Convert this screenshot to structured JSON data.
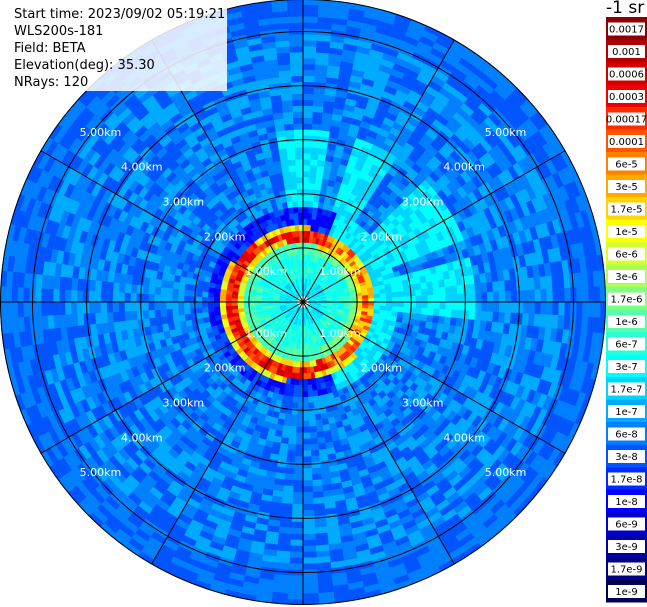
{
  "info": {
    "start_time": "Start time: 2023/09/02 05:19:21",
    "instrument": "WLS200s-181",
    "field": "Field: BETA",
    "elevation": "Elevation(deg): 35.30",
    "nrays": "NRays: 120"
  },
  "colorbar": {
    "unit": "-1 sr",
    "labels": [
      "0.0017",
      "0.001",
      "0.0006",
      "0.0003",
      "0.00017",
      "0.0001",
      "6e-5",
      "3e-5",
      "1.7e-5",
      "1e-5",
      "6e-6",
      "3e-6",
      "1.7e-6",
      "1e-6",
      "6e-7",
      "3e-7",
      "1.7e-7",
      "1e-7",
      "6e-8",
      "3e-8",
      "1.7e-8",
      "1e-8",
      "6e-9",
      "3e-9",
      "1.7e-9",
      "1e-9"
    ],
    "colors": [
      "#8b0000",
      "#b00000",
      "#d40000",
      "#ee0000",
      "#ff2a00",
      "#ff5500",
      "#ff8000",
      "#ffaa00",
      "#ffd400",
      "#ffff00",
      "#d4ff2a",
      "#aaff55",
      "#80ff80",
      "#55ffaa",
      "#2affd4",
      "#00ffff",
      "#00d4ff",
      "#00aaff",
      "#0080ff",
      "#0055ff",
      "#002aff",
      "#0000ff",
      "#0000d4",
      "#0000aa",
      "#000080",
      "#000055"
    ]
  },
  "chart_data": {
    "type": "heatmap",
    "projection": "polar PPI",
    "range_rings_km": [
      1,
      2,
      3,
      4,
      5
    ],
    "ring_labels": [
      "1.00km",
      "2.00km",
      "3.00km",
      "4.00km",
      "5.00km"
    ],
    "max_range_km": 5.6,
    "n_rays": 120,
    "spokes_deg": [
      0,
      30,
      60,
      90,
      120,
      150,
      180,
      210,
      240,
      270,
      300,
      330
    ],
    "label_azimuths_deg": [
      50,
      130,
      230,
      310
    ],
    "field": "BETA",
    "value_range": [
      "1e-9",
      "0.0017"
    ],
    "features": {
      "aerosol_ring_km": 1.25,
      "ring_peak_level": "1e-5 to 0.0003",
      "inner_level": "1e-6 to 1e-5",
      "outer_level": "6e-8 to 1.7e-7"
    }
  }
}
